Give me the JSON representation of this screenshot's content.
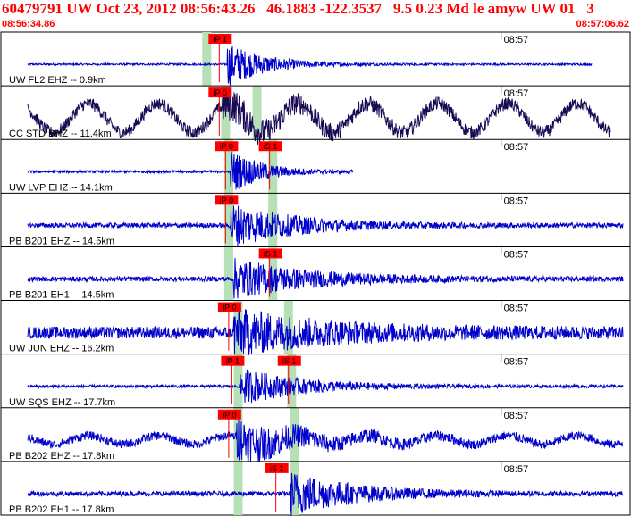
{
  "header": {
    "title": "60479791 UW Oct 23, 2012 08:56:43.26   46.1883 -122.3537   9.5 0.23 Md le amyw UW 01   3",
    "start_time": "08:56:34.86",
    "end_time": "08:57:06.62"
  },
  "colors": {
    "trace": "#0000cc",
    "trace_alt": "#1a0a55",
    "pick_box": "#ff0000",
    "pick_window": "#b6e0b6",
    "text_red": "#ff0000",
    "border": "#000000"
  },
  "chart_data": {
    "type": "line",
    "title": "60479791 UW Oct 23, 2012 08:56:43.26   46.1883 -122.3537   9.5 0.23 Md le amyw UW 01   3",
    "x_range": [
      "08:56:34.86",
      "08:57:06.62"
    ],
    "x_tick_label": "08:57",
    "channels": [
      {
        "label": "UW FL2 EHZ -- 0.9km",
        "color_key": "trace",
        "noise": 0.04,
        "signal": 0.9,
        "onset": 0.36,
        "decay": 0.06,
        "wave": 0,
        "picks": [
          {
            "label": "iP 1",
            "frac": 0.33
          }
        ],
        "windows": [
          0.32
        ],
        "end_frac": 0.94
      },
      {
        "label": "CC STD BHZ -- 11.4km",
        "color_key": "trace_alt",
        "noise": 0.25,
        "signal": 0.55,
        "onset": 0.35,
        "decay": 0.12,
        "wave": 0.6,
        "picks": [
          {
            "label": "iP 0",
            "frac": 0.33
          }
        ],
        "windows": [
          0.35,
          0.4
        ],
        "end_frac": 0.97
      },
      {
        "label": "UW LVP EHZ -- 14.1km",
        "color_key": "trace",
        "noise": 0.05,
        "signal": 0.9,
        "onset": 0.365,
        "decay": 0.05,
        "wave": 0,
        "picks": [
          {
            "label": "iP 0",
            "frac": 0.34
          },
          {
            "label": "iS 1",
            "frac": 0.41
          }
        ],
        "windows": [
          0.355,
          0.425
        ],
        "end_frac": 0.56
      },
      {
        "label": "PB B201 EHZ -- 14.5km",
        "color_key": "trace",
        "noise": 0.1,
        "signal": 0.9,
        "onset": 0.365,
        "decay": 0.1,
        "wave": 0,
        "picks": [
          {
            "label": "iP 0",
            "frac": 0.34
          }
        ],
        "windows": [
          0.355,
          0.425
        ],
        "end_frac": 0.99
      },
      {
        "label": "PB B201 EH1 -- 14.5km",
        "color_key": "trace",
        "noise": 0.1,
        "signal": 0.8,
        "onset": 0.37,
        "decay": 0.12,
        "wave": 0,
        "picks": [
          {
            "label": "iS 1",
            "frac": 0.41
          }
        ],
        "windows": [
          0.355,
          0.425
        ],
        "end_frac": 0.99
      },
      {
        "label": "UW JUN EHZ -- 16.2km",
        "color_key": "trace",
        "noise": 0.25,
        "signal": 0.85,
        "onset": 0.37,
        "decay": 0.15,
        "wave": 0,
        "picks": [
          {
            "label": "iP 0",
            "frac": 0.345
          }
        ],
        "windows": [
          0.37,
          0.45
        ],
        "end_frac": 0.99
      },
      {
        "label": "UW SQS EHZ -- 17.7km",
        "color_key": "trace",
        "noise": 0.06,
        "signal": 0.75,
        "onset": 0.38,
        "decay": 0.1,
        "wave": 0,
        "picks": [
          {
            "label": "iP 1",
            "frac": 0.35
          },
          {
            "label": "iS 1",
            "frac": 0.44
          }
        ],
        "windows": [
          0.37,
          0.455
        ],
        "end_frac": 0.99
      },
      {
        "label": "PB B202 EHZ -- 17.8km",
        "color_key": "trace",
        "noise": 0.18,
        "signal": 0.8,
        "onset": 0.375,
        "decay": 0.1,
        "wave": 0.18,
        "picks": [
          {
            "label": "iP 0",
            "frac": 0.345
          }
        ],
        "windows": [
          0.37,
          0.46
        ],
        "end_frac": 0.99
      },
      {
        "label": "PB B202 EH1 -- 17.8km",
        "color_key": "trace",
        "noise": 0.1,
        "signal": 0.9,
        "onset": 0.46,
        "decay": 0.1,
        "wave": 0,
        "picks": [
          {
            "label": "iS 1",
            "frac": 0.42
          }
        ],
        "windows": [
          0.37,
          0.46
        ],
        "end_frac": 0.99
      }
    ]
  }
}
